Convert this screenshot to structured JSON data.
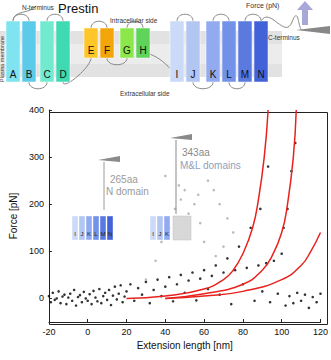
{
  "diagram": {
    "title": "Prestin",
    "n_terminus": "N-terminus",
    "c_terminus": "C-terminus",
    "intracellular": "Intracellular side",
    "extracellular": "Extracellular side",
    "membrane": "Plasma membrane",
    "force": "Force (pN)",
    "helices": [
      {
        "label": "A",
        "color": "#7fe3f0"
      },
      {
        "label": "B",
        "color": "#5ccbe9"
      },
      {
        "label": "C",
        "color": "#72ead0"
      },
      {
        "label": "D",
        "color": "#3fd9b2"
      },
      {
        "label": "E",
        "color": "#ffc629"
      },
      {
        "label": "F",
        "color": "#f2a60a"
      },
      {
        "label": "G",
        "color": "#8ce84a"
      },
      {
        "label": "H",
        "color": "#5fd35a"
      },
      {
        "label": "I",
        "color": "#cbdaf8"
      },
      {
        "label": "J",
        "color": "#b2c6f2"
      },
      {
        "label": "K",
        "color": "#92aaf0"
      },
      {
        "label": "L",
        "color": "#7291e8"
      },
      {
        "label": "M",
        "color": "#5a7ae0"
      },
      {
        "label": "N",
        "color": "#4262d8"
      }
    ]
  },
  "chart_data": {
    "type": "scatter",
    "x_label": "Extension length [nm]",
    "y_label": "Force [pN]",
    "xlim": [
      -20,
      120
    ],
    "xticks": [
      -20,
      0,
      20,
      40,
      60,
      80,
      100,
      120
    ],
    "ylim": [
      -50,
      400
    ],
    "yticks": [
      0,
      100,
      200,
      300,
      400
    ],
    "grid": false,
    "series": [
      {
        "type": "scatter",
        "color": "#000000",
        "marker": "circle",
        "x": [
          -20,
          -19,
          -18,
          -17,
          -16,
          -15,
          -14,
          -13,
          -12,
          -11,
          -10,
          -9,
          -8,
          -7,
          -6,
          -5,
          -4,
          -3,
          -2,
          -1,
          0,
          1,
          2,
          3,
          4,
          5,
          6,
          7,
          8,
          9,
          10,
          11,
          12,
          13,
          14,
          15,
          16,
          17,
          18,
          19,
          20,
          22,
          24,
          26,
          28,
          30,
          32,
          34,
          36,
          38,
          40,
          42,
          44,
          46,
          48,
          50,
          52,
          54,
          56,
          58,
          60,
          62,
          64,
          66,
          68,
          70,
          72,
          74,
          76,
          78,
          80,
          82,
          84,
          86,
          88,
          89,
          90,
          92,
          93,
          94,
          96,
          98,
          100,
          101,
          102,
          103,
          104,
          105,
          106,
          107,
          108,
          110,
          112,
          114,
          116,
          118,
          120
        ],
        "values": [
          5,
          -8,
          12,
          -3,
          0,
          15,
          -10,
          4,
          8,
          -12,
          2,
          10,
          -5,
          18,
          -15,
          3,
          7,
          -8,
          14,
          0,
          -5,
          9,
          -12,
          16,
          2,
          -6,
          20,
          -10,
          5,
          12,
          -3,
          18,
          -14,
          6,
          25,
          -2,
          10,
          28,
          -8,
          4,
          15,
          30,
          -5,
          22,
          8,
          35,
          -10,
          18,
          40,
          5,
          25,
          45,
          -6,
          30,
          50,
          12,
          38,
          55,
          -4,
          42,
          60,
          20,
          48,
          70,
          8,
          55,
          85,
          -12,
          60,
          110,
          30,
          65,
          150,
          -5,
          70,
          190,
          15,
          75,
          280,
          -8,
          80,
          10,
          95,
          150,
          -15,
          190,
          5,
          270,
          -10,
          330,
          12,
          -5,
          8,
          -20,
          3,
          -8,
          10
        ]
      },
      {
        "type": "scatter",
        "color": "#aaaaaa",
        "marker": "circle",
        "x": [
          30,
          35,
          38,
          42,
          45,
          48,
          50,
          52,
          55,
          58,
          60,
          62,
          65,
          68,
          72,
          75,
          40,
          47,
          57,
          66,
          70
        ],
        "values": [
          40,
          80,
          120,
          150,
          190,
          210,
          230,
          180,
          200,
          160,
          120,
          250,
          230,
          200,
          170,
          140,
          260,
          240,
          220,
          90,
          110
        ]
      },
      {
        "type": "line",
        "color": "#e8231e",
        "line_style": "solid",
        "x": [
          20,
          40,
          60,
          70,
          75,
          80,
          85,
          88,
          91,
          93
        ],
        "values": [
          0,
          5,
          20,
          40,
          60,
          95,
          150,
          210,
          300,
          400
        ]
      },
      {
        "type": "line",
        "color": "#e8231e",
        "line_style": "solid",
        "x": [
          40,
          60,
          80,
          90,
          95,
          100,
          103,
          106,
          107.5
        ],
        "values": [
          0,
          10,
          30,
          60,
          90,
          140,
          200,
          300,
          400
        ]
      },
      {
        "type": "line",
        "color": "#e8231e",
        "line_style": "solid",
        "x": [
          40,
          60,
          80,
          100,
          110,
          115,
          120
        ],
        "values": [
          0,
          5,
          15,
          40,
          70,
          100,
          140
        ]
      }
    ],
    "annotations": [
      {
        "text": "265aa",
        "color": "#9a9a9a"
      },
      {
        "text": "N domain",
        "color": "#9a9a9a"
      },
      {
        "text": "343aa",
        "color": "#8a8a8a"
      },
      {
        "text": "M&L domains",
        "color": "#8ea2bd"
      }
    ],
    "insets": [
      {
        "helices": [
          "I",
          "J",
          "K",
          "L",
          "M",
          "N"
        ]
      },
      {
        "helices": [
          "I",
          "J",
          "K"
        ]
      }
    ]
  }
}
